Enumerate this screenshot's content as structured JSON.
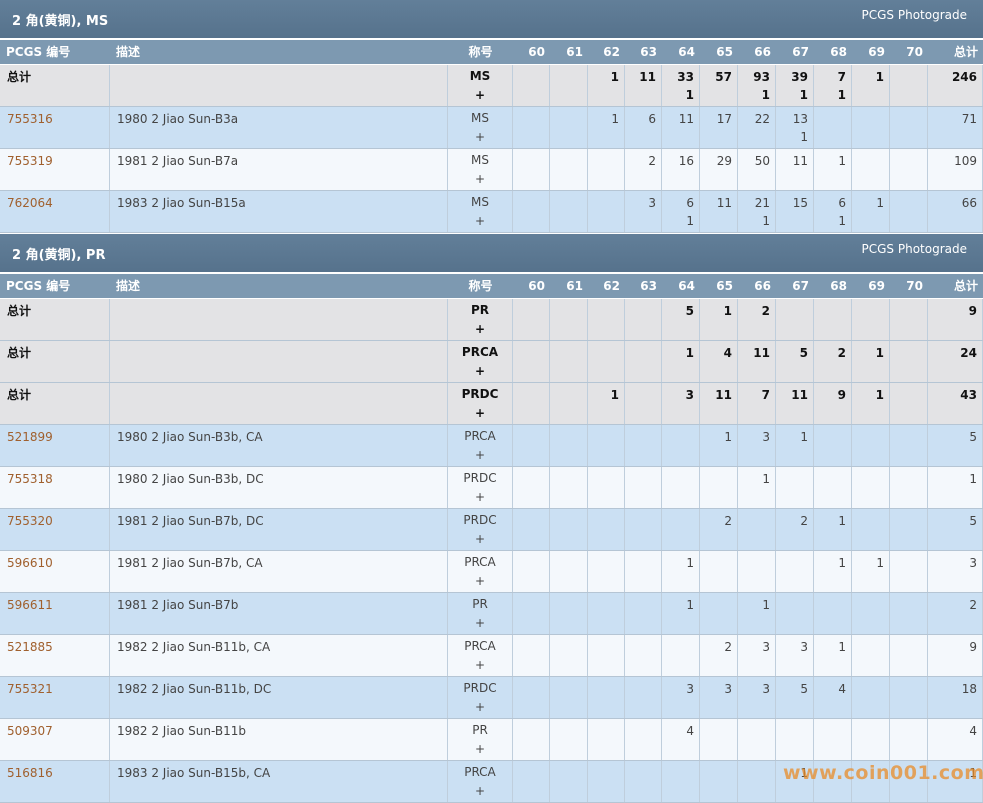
{
  "sections": [
    {
      "title": "2 角(黄铜), MS",
      "source": "PCGS Photograde",
      "header": [
        "PCGS 编号",
        "描述",
        "称号",
        "60",
        "61",
        "62",
        "63",
        "64",
        "65",
        "66",
        "67",
        "68",
        "69",
        "70",
        "总计"
      ],
      "summary_rows": [
        [
          "总计",
          null,
          [
            "MS",
            "+"
          ],
          null,
          null,
          "1",
          "11",
          [
            "33",
            "1"
          ],
          "57",
          [
            "93",
            "1"
          ],
          [
            "39",
            "1"
          ],
          [
            "7",
            "1"
          ],
          "1",
          null,
          "246"
        ]
      ],
      "rows": [
        [
          "755316",
          "1980 2 Jiao Sun-B3a",
          [
            "MS",
            "+"
          ],
          null,
          null,
          "1",
          "6",
          "11",
          "17",
          "22",
          [
            "13",
            "1"
          ],
          null,
          null,
          null,
          "71"
        ],
        [
          "755319",
          "1981 2 Jiao Sun-B7a",
          [
            "MS",
            "+"
          ],
          null,
          null,
          null,
          "2",
          "16",
          "29",
          "50",
          "11",
          "1",
          null,
          null,
          "109"
        ],
        [
          "762064",
          "1983 2 Jiao Sun-B15a",
          [
            "MS",
            "+"
          ],
          null,
          null,
          null,
          "3",
          [
            "6",
            "1"
          ],
          "11",
          [
            "21",
            "1"
          ],
          "15",
          [
            "6",
            "1"
          ],
          "1",
          null,
          "66"
        ]
      ]
    },
    {
      "title": "2 角(黄铜), PR",
      "source": "PCGS Photograde",
      "header": [
        "PCGS 编号",
        "描述",
        "称号",
        "60",
        "61",
        "62",
        "63",
        "64",
        "65",
        "66",
        "67",
        "68",
        "69",
        "70",
        "总计"
      ],
      "summary_rows": [
        [
          "总计",
          null,
          [
            "PR",
            "+"
          ],
          null,
          null,
          null,
          null,
          "5",
          "1",
          "2",
          null,
          null,
          null,
          null,
          "9"
        ],
        [
          "总计",
          null,
          [
            "PRCA",
            "+"
          ],
          null,
          null,
          null,
          null,
          "1",
          "4",
          "11",
          "5",
          "2",
          "1",
          null,
          "24"
        ],
        [
          "总计",
          null,
          [
            "PRDC",
            "+"
          ],
          null,
          null,
          "1",
          null,
          "3",
          "11",
          "7",
          "11",
          "9",
          "1",
          null,
          "43"
        ]
      ],
      "rows": [
        [
          "521899",
          "1980 2 Jiao Sun-B3b, CA",
          [
            "PRCA",
            "+"
          ],
          null,
          null,
          null,
          null,
          null,
          "1",
          "3",
          "1",
          null,
          null,
          null,
          "5"
        ],
        [
          "755318",
          "1980 2 Jiao Sun-B3b, DC",
          [
            "PRDC",
            "+"
          ],
          null,
          null,
          null,
          null,
          null,
          null,
          "1",
          null,
          null,
          null,
          null,
          "1"
        ],
        [
          "755320",
          "1981 2 Jiao Sun-B7b, DC",
          [
            "PRDC",
            "+"
          ],
          null,
          null,
          null,
          null,
          null,
          "2",
          null,
          "2",
          "1",
          null,
          null,
          "5"
        ],
        [
          "596610",
          "1981 2 Jiao Sun-B7b, CA",
          [
            "PRCA",
            "+"
          ],
          null,
          null,
          null,
          null,
          "1",
          null,
          null,
          null,
          "1",
          "1",
          null,
          "3"
        ],
        [
          "596611",
          "1981 2 Jiao Sun-B7b",
          [
            "PR",
            "+"
          ],
          null,
          null,
          null,
          null,
          "1",
          null,
          "1",
          null,
          null,
          null,
          null,
          "2"
        ],
        [
          "521885",
          "1982 2 Jiao Sun-B11b, CA",
          [
            "PRCA",
            "+"
          ],
          null,
          null,
          null,
          null,
          null,
          "2",
          "3",
          "3",
          "1",
          null,
          null,
          "9"
        ],
        [
          "755321",
          "1982 2 Jiao Sun-B11b, DC",
          [
            "PRDC",
            "+"
          ],
          null,
          null,
          null,
          null,
          "3",
          "3",
          "3",
          "5",
          "4",
          null,
          null,
          "18"
        ],
        [
          "509307",
          "1982 2 Jiao Sun-B11b",
          [
            "PR",
            "+"
          ],
          null,
          null,
          null,
          null,
          "4",
          null,
          null,
          null,
          null,
          null,
          null,
          "4"
        ],
        [
          "516816",
          "1983 2 Jiao Sun-B15b, CA",
          [
            "PRCA",
            "+"
          ],
          null,
          null,
          null,
          null,
          null,
          null,
          null,
          "1",
          null,
          null,
          null,
          "1"
        ]
      ]
    }
  ],
  "watermark": "www.coin001.com"
}
